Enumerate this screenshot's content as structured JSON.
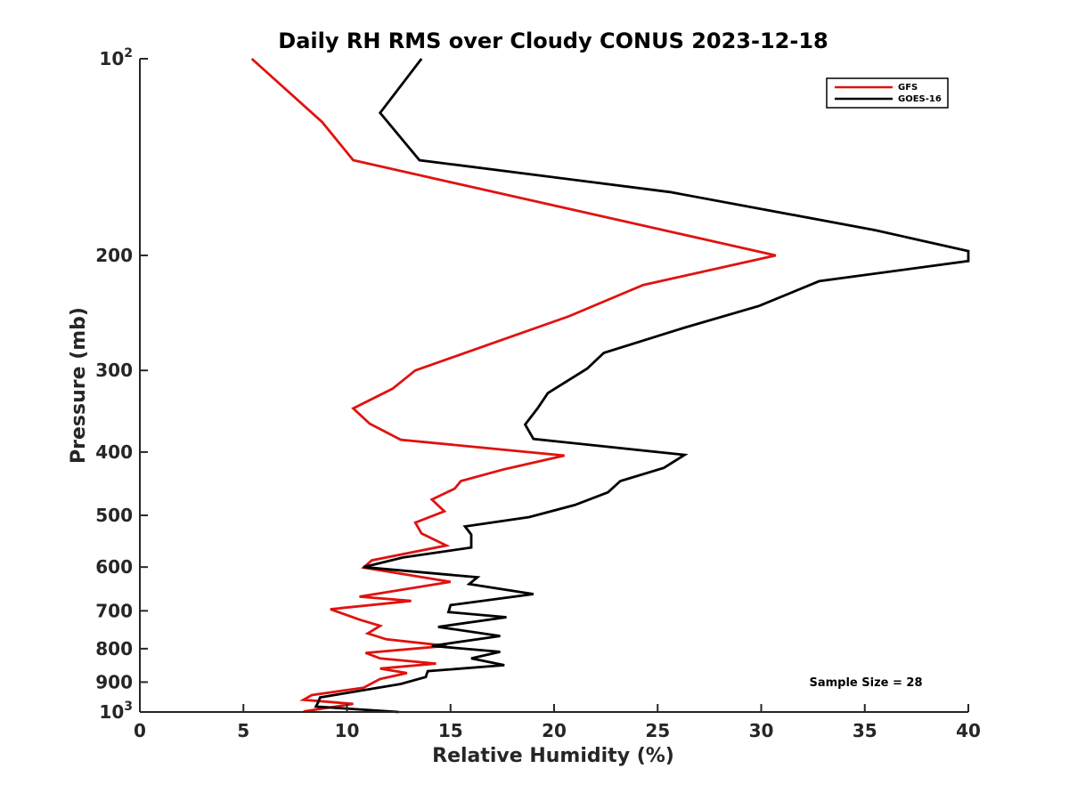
{
  "chart_data": {
    "type": "line",
    "title": "Daily RH RMS over Cloudy CONUS 2023-12-18",
    "xlabel": "Relative Humidity (%)",
    "ylabel": "Pressure (mb)",
    "xlim": [
      0,
      40
    ],
    "ylim": [
      100,
      1000
    ],
    "y_scale": "log",
    "y_reversed": true,
    "grid": false,
    "legend_position": "top-right",
    "x_ticks": [
      0,
      5,
      10,
      15,
      20,
      25,
      30,
      35,
      40
    ],
    "x_tick_labels": [
      "0",
      "5",
      "10",
      "15",
      "20",
      "25",
      "30",
      "35",
      "40"
    ],
    "y_ticks": [
      {
        "value": 100,
        "base": "10",
        "exp": "2"
      },
      {
        "value": 200,
        "label": "200"
      },
      {
        "value": 300,
        "label": "300"
      },
      {
        "value": 400,
        "label": "400"
      },
      {
        "value": 500,
        "label": "500"
      },
      {
        "value": 600,
        "label": "600"
      },
      {
        "value": 700,
        "label": "700"
      },
      {
        "value": 800,
        "label": "800"
      },
      {
        "value": 900,
        "label": "900"
      },
      {
        "value": 1000,
        "base": "10",
        "exp": "3"
      }
    ],
    "annotation": "Sample Size = 28",
    "series": [
      {
        "name": "GFS",
        "color": "#e0120f",
        "points": [
          [
            5.4,
            100
          ],
          [
            8.8,
            125
          ],
          [
            10.3,
            143
          ],
          [
            30.7,
            200
          ],
          [
            24.3,
            222
          ],
          [
            20.7,
            248
          ],
          [
            13.3,
            300
          ],
          [
            12.2,
            320
          ],
          [
            10.3,
            343
          ],
          [
            11.1,
            362
          ],
          [
            12.6,
            383
          ],
          [
            20.5,
            405
          ],
          [
            17.6,
            425
          ],
          [
            15.5,
            443
          ],
          [
            15.2,
            455
          ],
          [
            14.1,
            473
          ],
          [
            14.7,
            493
          ],
          [
            13.3,
            513
          ],
          [
            13.6,
            533
          ],
          [
            14.8,
            556
          ],
          [
            11.2,
            586
          ],
          [
            10.8,
            601
          ],
          [
            15.0,
            632
          ],
          [
            10.6,
            666
          ],
          [
            13.1,
            676
          ],
          [
            9.2,
            696
          ],
          [
            10.6,
            722
          ],
          [
            11.6,
            738
          ],
          [
            11.0,
            758
          ],
          [
            11.9,
            774
          ],
          [
            14.8,
            792
          ],
          [
            10.9,
            812
          ],
          [
            11.6,
            828
          ],
          [
            14.3,
            843
          ],
          [
            11.6,
            858
          ],
          [
            12.9,
            872
          ],
          [
            11.6,
            890
          ],
          [
            10.8,
            918
          ],
          [
            8.3,
            942
          ],
          [
            7.9,
            958
          ],
          [
            10.3,
            972
          ],
          [
            7.9,
            998
          ]
        ]
      },
      {
        "name": "GOES-16",
        "color": "#000000",
        "points": [
          [
            13.6,
            100
          ],
          [
            11.6,
            121
          ],
          [
            13.5,
            143
          ],
          [
            25.6,
            160
          ],
          [
            35.5,
            183
          ],
          [
            40.0,
            197
          ],
          [
            40.0,
            204
          ],
          [
            32.8,
            219
          ],
          [
            29.9,
            239
          ],
          [
            26.3,
            258
          ],
          [
            22.4,
            282
          ],
          [
            21.6,
            298
          ],
          [
            19.7,
            325
          ],
          [
            19.2,
            343
          ],
          [
            18.6,
            363
          ],
          [
            19.0,
            382
          ],
          [
            26.3,
            404
          ],
          [
            25.3,
            423
          ],
          [
            23.2,
            443
          ],
          [
            22.6,
            461
          ],
          [
            21.0,
            482
          ],
          [
            18.8,
            503
          ],
          [
            15.7,
            520
          ],
          [
            16.0,
            535
          ],
          [
            16.0,
            560
          ],
          [
            12.7,
            580
          ],
          [
            10.8,
            600
          ],
          [
            16.3,
            622
          ],
          [
            15.9,
            637
          ],
          [
            19.0,
            660
          ],
          [
            15.0,
            686
          ],
          [
            14.9,
            703
          ],
          [
            17.7,
            716
          ],
          [
            14.4,
            741
          ],
          [
            17.4,
            765
          ],
          [
            14.1,
            792
          ],
          [
            17.4,
            809
          ],
          [
            16.0,
            828
          ],
          [
            17.6,
            848
          ],
          [
            13.9,
            866
          ],
          [
            13.8,
            884
          ],
          [
            12.6,
            906
          ],
          [
            8.7,
            950
          ],
          [
            8.6,
            968
          ],
          [
            8.5,
            981
          ],
          [
            12.5,
            1000
          ]
        ]
      }
    ]
  }
}
